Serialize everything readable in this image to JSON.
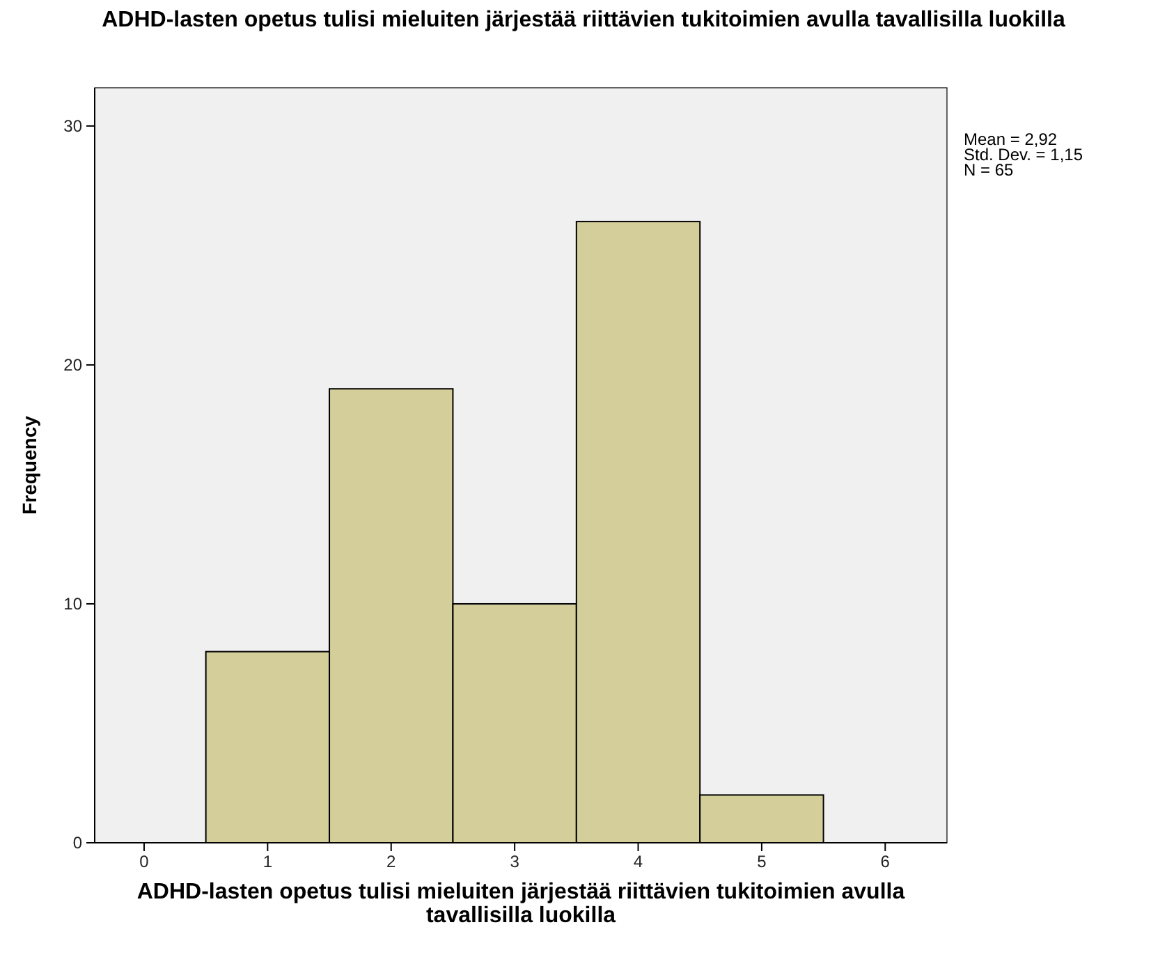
{
  "chart_data": {
    "type": "histogram",
    "title": "ADHD-lasten opetus tulisi mieluiten järjestää riittävien tukitoimien avulla tavallisilla luokilla",
    "xlabel": "ADHD-lasten opetus tulisi mieluiten järjestää riittävien tukitoimien avulla tavallisilla luokilla",
    "ylabel": "Frequency",
    "bins": [
      0.5,
      1.5,
      2.5,
      3.5,
      4.5,
      5.5
    ],
    "values": [
      8,
      19,
      10,
      26,
      2
    ],
    "color": "#d3ce9a",
    "xlim": [
      -0.4,
      6.5
    ],
    "xticks": [
      0,
      1,
      2,
      3,
      4,
      5,
      6
    ],
    "ylim": [
      0,
      31.6
    ],
    "yticks": [
      0,
      10,
      20,
      30
    ],
    "grid": false,
    "annotations": [
      "Mean = 2,92",
      "Std. Dev. = 1,15",
      "N = 65"
    ]
  }
}
